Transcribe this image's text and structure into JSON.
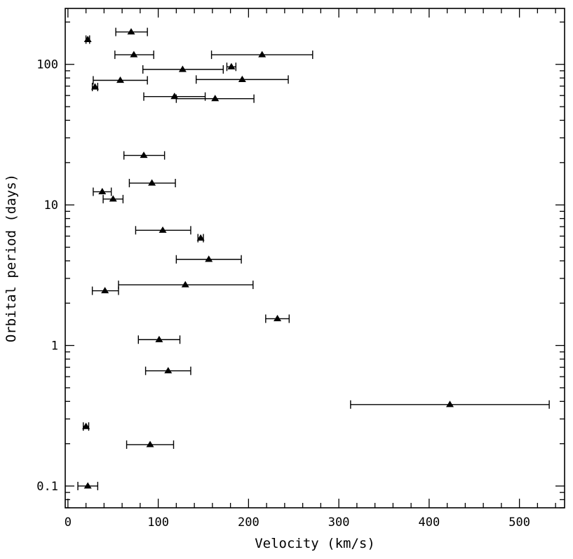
{
  "chart_data": {
    "type": "scatter",
    "title": "",
    "xlabel": "Velocity (km/s)",
    "ylabel": "Orbital period (days)",
    "xlim": [
      -3,
      550
    ],
    "ylim": [
      0.07,
      250
    ],
    "yscale": "log",
    "x_ticks": [
      {
        "value": 0,
        "label": "0"
      },
      {
        "value": 100,
        "label": "100"
      },
      {
        "value": 200,
        "label": "200"
      },
      {
        "value": 300,
        "label": "300"
      },
      {
        "value": 400,
        "label": "400"
      },
      {
        "value": 500,
        "label": "500"
      }
    ],
    "y_ticks": [
      {
        "value": 0.1,
        "label": "0.1"
      },
      {
        "value": 1,
        "label": "1"
      },
      {
        "value": 10,
        "label": "10"
      },
      {
        "value": 100,
        "label": "100"
      }
    ],
    "marker": "triangle",
    "color": "#000000",
    "points": [
      {
        "period": 150,
        "v": 22,
        "lo": 20,
        "hi": 24
      },
      {
        "period": 170,
        "v": 70,
        "lo": 53,
        "hi": 88
      },
      {
        "period": 117,
        "v": 73,
        "lo": 52,
        "hi": 95
      },
      {
        "period": 117,
        "v": 215,
        "lo": 159,
        "hi": 271
      },
      {
        "period": 96,
        "v": 181,
        "lo": 176,
        "hi": 186
      },
      {
        "period": 92,
        "v": 127,
        "lo": 83,
        "hi": 172
      },
      {
        "period": 78,
        "v": 193,
        "lo": 142,
        "hi": 244
      },
      {
        "period": 77,
        "v": 58,
        "lo": 28,
        "hi": 88
      },
      {
        "period": 69,
        "v": 30,
        "lo": 27,
        "hi": 33
      },
      {
        "period": 59,
        "v": 118,
        "lo": 84,
        "hi": 152
      },
      {
        "period": 57,
        "v": 163,
        "lo": 120,
        "hi": 206
      },
      {
        "period": 22.5,
        "v": 84,
        "lo": 62,
        "hi": 107
      },
      {
        "period": 14.3,
        "v": 93,
        "lo": 68,
        "hi": 119
      },
      {
        "period": 12.4,
        "v": 38,
        "lo": 28,
        "hi": 48
      },
      {
        "period": 11.0,
        "v": 50,
        "lo": 39,
        "hi": 61
      },
      {
        "period": 6.6,
        "v": 105,
        "lo": 75,
        "hi": 136
      },
      {
        "period": 5.8,
        "v": 147,
        "lo": 144,
        "hi": 150
      },
      {
        "period": 4.1,
        "v": 156,
        "lo": 120,
        "hi": 192
      },
      {
        "period": 2.7,
        "v": 130,
        "lo": 56,
        "hi": 205
      },
      {
        "period": 2.45,
        "v": 41,
        "lo": 27,
        "hi": 56
      },
      {
        "period": 1.55,
        "v": 232,
        "lo": 219,
        "hi": 245
      },
      {
        "period": 1.1,
        "v": 101,
        "lo": 78,
        "hi": 124
      },
      {
        "period": 0.66,
        "v": 111,
        "lo": 86,
        "hi": 136
      },
      {
        "period": 0.38,
        "v": 423,
        "lo": 313,
        "hi": 533
      },
      {
        "period": 0.265,
        "v": 20,
        "lo": 17,
        "hi": 23
      },
      {
        "period": 0.197,
        "v": 91,
        "lo": 65,
        "hi": 117
      },
      {
        "period": 0.1,
        "v": 22,
        "lo": 11,
        "hi": 33
      }
    ]
  }
}
